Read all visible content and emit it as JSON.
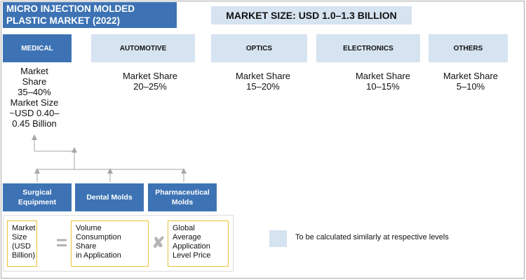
{
  "title": "MICRO INJECTION MOLDED PLASTIC MARKET (2022)",
  "market_size": "MARKET SIZE: USD 1.0–1.3 BILLION",
  "segments": [
    {
      "label": "MEDICAL"
    },
    {
      "label": "AUTOMOTIVE",
      "share_label": "Market Share",
      "share_value": "20–25%"
    },
    {
      "label": "OPTICS",
      "share_label": "Market Share",
      "share_value": "15–20%"
    },
    {
      "label": "ELECTRONICS",
      "share_label": "Market Share",
      "share_value": "10–15%"
    },
    {
      "label": "OTHERS",
      "share_label": "Market Share",
      "share_value": "5–10%"
    }
  ],
  "medical_info": [
    "Market",
    "Share",
    "35–40%",
    "Market Size",
    "~USD 0.40–",
    "0.45 Billion"
  ],
  "applications": [
    "Surgical Equipment",
    "Dental Molds",
    "Pharmaceutical Molds"
  ],
  "formula": {
    "left": [
      "Market",
      "Size",
      "(USD",
      "Billion)"
    ],
    "equals": "=",
    "middle": [
      "Volume",
      "Consumption Share",
      "in Application"
    ],
    "times": "✘",
    "right": [
      "Global Average",
      "Application",
      "Level Price"
    ]
  },
  "legend": {
    "text": "To be calculated similarly at respective levels",
    "color": "#d6e3f1"
  },
  "colors": {
    "primary": "#3d73b4",
    "light": "#d6e3f1",
    "formula_border": "#e8c23a"
  }
}
